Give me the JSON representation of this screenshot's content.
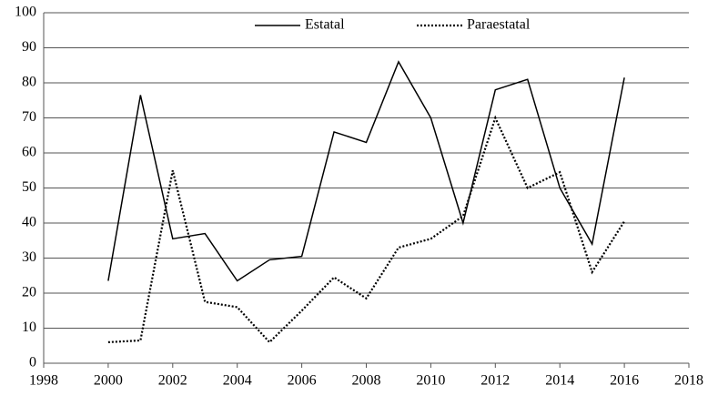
{
  "chart_data": {
    "type": "line",
    "x": [
      2000,
      2001,
      2002,
      2003,
      2004,
      2005,
      2006,
      2007,
      2008,
      2009,
      2010,
      2011,
      2012,
      2013,
      2014,
      2015,
      2016
    ],
    "series": [
      {
        "name": "Estatal",
        "color": "#000000",
        "dash": "solid",
        "values": [
          23.5,
          76.5,
          35.5,
          37,
          23.5,
          29.5,
          30.5,
          66,
          63,
          86,
          70,
          40,
          78,
          81,
          50,
          34,
          81.5
        ]
      },
      {
        "name": "Paraestatal",
        "color": "#000000",
        "dash": "dotted",
        "values": [
          6,
          6.5,
          55,
          17.5,
          16,
          6,
          15,
          24.5,
          18.5,
          33,
          35.5,
          42,
          70,
          50,
          54.5,
          26,
          40.5
        ]
      }
    ],
    "xlim": [
      1998,
      2018
    ],
    "xticks": [
      1998,
      2000,
      2002,
      2004,
      2006,
      2008,
      2010,
      2012,
      2014,
      2016,
      2018
    ],
    "ylim": [
      0,
      100
    ],
    "yticks": [
      0,
      10,
      20,
      30,
      40,
      50,
      60,
      70,
      80,
      90,
      100
    ],
    "grid": true,
    "legend": "top"
  }
}
